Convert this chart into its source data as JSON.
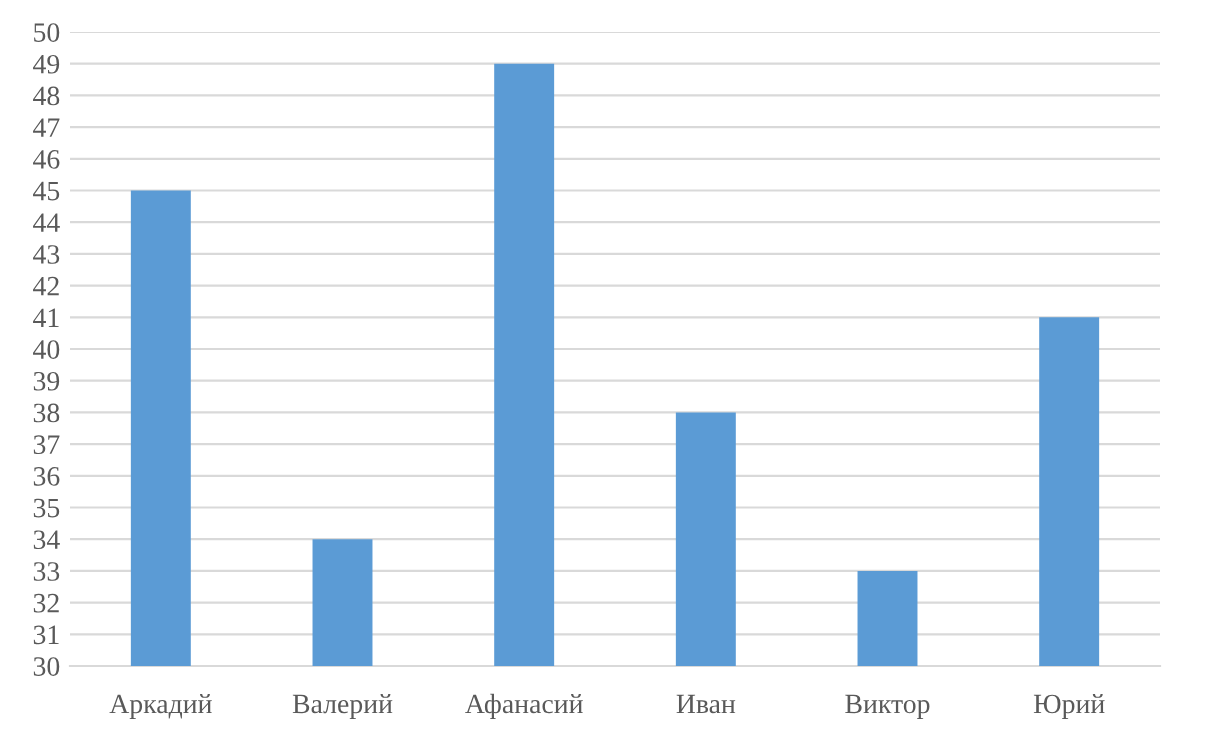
{
  "chart_data": {
    "type": "bar",
    "categories": [
      "Аркадий",
      "Валерий",
      "Афанасий",
      "Иван",
      "Виктор",
      "Юрий"
    ],
    "values": [
      45,
      34,
      49,
      38,
      33,
      41
    ],
    "color": "#5b9bd5",
    "ylim": [
      30,
      50
    ],
    "yticks": [
      30,
      31,
      32,
      33,
      34,
      35,
      36,
      37,
      38,
      39,
      40,
      41,
      42,
      43,
      44,
      45,
      46,
      47,
      48,
      49,
      50
    ],
    "grid": "y"
  }
}
